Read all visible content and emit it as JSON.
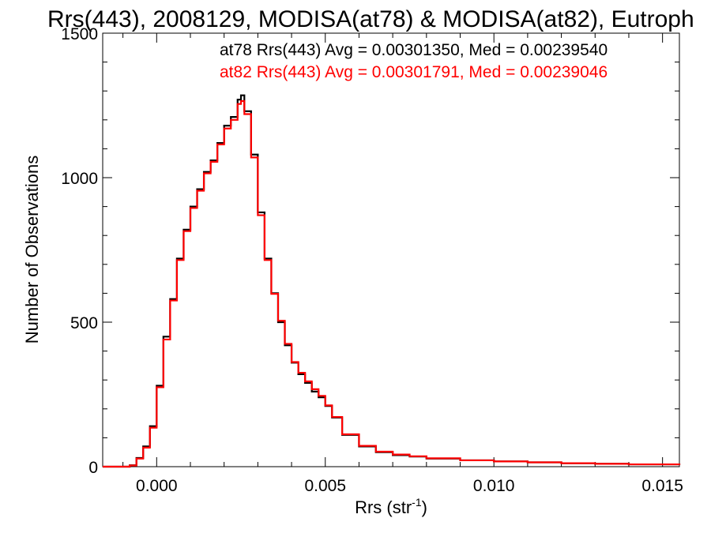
{
  "chart_data": {
    "type": "line",
    "title": "Rrs(443), 2008129, MODISA(at78) & MODISA(at82), Eutroph",
    "xlabel": "Rrs (str",
    "xlabel_sup": "-1",
    "xlabel_close": ")",
    "ylabel": "Number of Observations",
    "xlim": [
      -0.0016,
      0.0155
    ],
    "ylim": [
      0,
      1500
    ],
    "xticks": [
      {
        "value": 0.0,
        "label": "0.000"
      },
      {
        "value": 0.005,
        "label": "0.005"
      },
      {
        "value": 0.01,
        "label": "0.010"
      },
      {
        "value": 0.015,
        "label": "0.015"
      }
    ],
    "yticks": [
      {
        "value": 0,
        "label": "0"
      },
      {
        "value": 500,
        "label": "500"
      },
      {
        "value": 1000,
        "label": "1000"
      },
      {
        "value": 1500,
        "label": "1500"
      }
    ],
    "series": [
      {
        "name": "at78",
        "color": "#000000",
        "label": "at78 Rrs(443) Avg = 0.00301350, Med = 0.00239540",
        "x": [
          -0.0016,
          -0.0012,
          -0.0008,
          -0.0006,
          -0.0004,
          -0.0002,
          0.0,
          0.0002,
          0.0004,
          0.0006,
          0.0008,
          0.001,
          0.0012,
          0.0014,
          0.0016,
          0.0018,
          0.002,
          0.0022,
          0.0024,
          0.0025,
          0.0026,
          0.0028,
          0.003,
          0.0032,
          0.0034,
          0.0036,
          0.0038,
          0.004,
          0.0042,
          0.0044,
          0.0046,
          0.0048,
          0.005,
          0.0052,
          0.0055,
          0.006,
          0.0065,
          0.007,
          0.0075,
          0.008,
          0.009,
          0.01,
          0.011,
          0.012,
          0.013,
          0.014,
          0.0155
        ],
        "values": [
          0,
          0,
          5,
          30,
          70,
          140,
          280,
          450,
          580,
          720,
          820,
          900,
          960,
          1020,
          1060,
          1120,
          1180,
          1210,
          1270,
          1285,
          1230,
          1080,
          880,
          720,
          600,
          500,
          420,
          360,
          320,
          290,
          260,
          240,
          210,
          170,
          110,
          70,
          50,
          40,
          35,
          28,
          22,
          18,
          15,
          12,
          10,
          8,
          6
        ]
      },
      {
        "name": "at82",
        "color": "#ff0000",
        "label": "at82 Rrs(443) Avg = 0.00301791, Med = 0.00239046",
        "x": [
          -0.0016,
          -0.0012,
          -0.0008,
          -0.0006,
          -0.0004,
          -0.0002,
          0.0,
          0.0002,
          0.0004,
          0.0006,
          0.0008,
          0.001,
          0.0012,
          0.0014,
          0.0016,
          0.0018,
          0.002,
          0.0022,
          0.0024,
          0.0025,
          0.0026,
          0.0028,
          0.003,
          0.0032,
          0.0034,
          0.0036,
          0.0038,
          0.004,
          0.0042,
          0.0044,
          0.0046,
          0.0048,
          0.005,
          0.0052,
          0.0055,
          0.006,
          0.0065,
          0.007,
          0.0075,
          0.008,
          0.009,
          0.01,
          0.011,
          0.012,
          0.013,
          0.014,
          0.0155
        ],
        "values": [
          0,
          0,
          4,
          28,
          66,
          135,
          275,
          440,
          575,
          715,
          815,
          895,
          955,
          1015,
          1055,
          1115,
          1170,
          1200,
          1255,
          1265,
          1220,
          1070,
          870,
          715,
          598,
          505,
          425,
          362,
          325,
          295,
          268,
          245,
          212,
          172,
          112,
          72,
          52,
          42,
          36,
          29,
          22,
          18,
          15,
          12,
          10,
          8,
          6
        ]
      }
    ]
  }
}
